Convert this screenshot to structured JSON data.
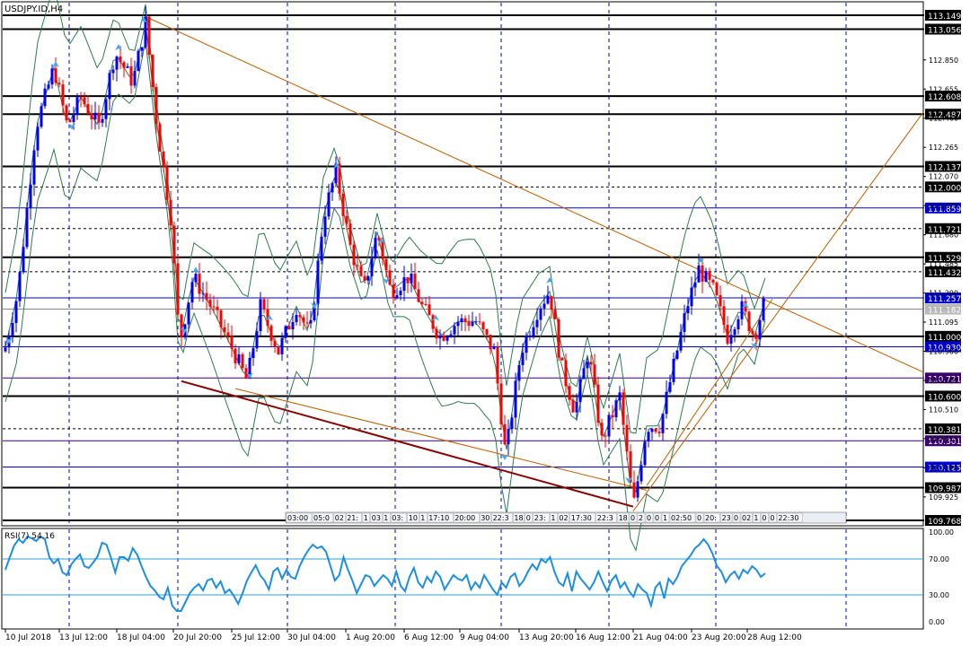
{
  "chart_data": {
    "type": "candlestick",
    "symbol_title": "USDJPY.ID,H4",
    "price_axis": {
      "ylim": [
        109.768,
        113.149
      ],
      "tick_labels": [
        "112.850",
        "112.655",
        "112.460",
        "112.265",
        "112.070",
        "111.875",
        "111.680",
        "111.485",
        "111.290",
        "111.095",
        "110.900",
        "110.705",
        "110.510",
        "110.315",
        "110.120",
        "109.925"
      ]
    },
    "level_labels": [
      {
        "value": "113.149",
        "style": "black"
      },
      {
        "value": "113.056",
        "style": "black"
      },
      {
        "value": "112.608",
        "style": "black"
      },
      {
        "value": "112.487",
        "style": "black"
      },
      {
        "value": "112.137",
        "style": "black"
      },
      {
        "value": "112.000",
        "style": "black"
      },
      {
        "value": "111.859",
        "style": "blue"
      },
      {
        "value": "111.721",
        "style": "black"
      },
      {
        "value": "111.529",
        "style": "black"
      },
      {
        "value": "111.432",
        "style": "black"
      },
      {
        "value": "111.257",
        "style": "blue"
      },
      {
        "value": "111.182",
        "style": "current"
      },
      {
        "value": "111.000",
        "style": "black"
      },
      {
        "value": "110.930",
        "style": "blue"
      },
      {
        "value": "110.721",
        "style": "purple"
      },
      {
        "value": "110.600",
        "style": "black"
      },
      {
        "value": "110.381",
        "style": "black"
      },
      {
        "value": "110.301",
        "style": "purple"
      },
      {
        "value": "110.125",
        "style": "blue"
      },
      {
        "value": "109.987",
        "style": "black"
      },
      {
        "value": "109.768",
        "style": "black"
      }
    ],
    "time_axis_labels": [
      "10 Jul 2018",
      "13 Jul 12:00",
      "18 Jul 04:00",
      "20 Jul 20:00",
      "25 Jul 12:00",
      "30 Jul 04:00",
      "1 Aug 20:00",
      "6 Aug 12:00",
      "9 Aug 04:00",
      "13 Aug 20:00",
      "16 Aug 12:00",
      "21 Aug 04:00",
      "23 Aug 20:00",
      "28 Aug 12:00"
    ],
    "session_labels": [
      "03:00",
      "05:0",
      "02",
      "21:",
      "1",
      "03",
      "1",
      "03:",
      "10",
      "1",
      "17:10",
      "20:00",
      "30",
      "22:3",
      "18",
      "0",
      "23:",
      "1",
      "02",
      "17:30",
      "22:3",
      "18",
      "0",
      "2",
      "0",
      "0",
      "1",
      "02:50",
      "0",
      "20:",
      "23",
      "0",
      "02",
      "1",
      "0",
      "0",
      "22:30"
    ],
    "rsi": {
      "label": "RSI(7) 54.16",
      "ylim": [
        0,
        100
      ],
      "tick_labels": [
        "100.00",
        "70.00",
        "30.00",
        "0.00"
      ],
      "levels": [
        70,
        30
      ],
      "values": [
        58,
        72,
        85,
        92,
        88,
        95,
        93,
        90,
        95,
        92,
        72,
        65,
        70,
        55,
        52,
        64,
        70,
        75,
        62,
        60,
        66,
        73,
        88,
        86,
        72,
        55,
        72,
        72,
        68,
        82,
        75,
        62,
        50,
        40,
        35,
        28,
        25,
        38,
        18,
        12,
        12,
        22,
        32,
        38,
        42,
        35,
        46,
        48,
        38,
        45,
        32,
        36,
        29,
        20,
        32,
        46,
        55,
        63,
        52,
        46,
        36,
        56,
        60,
        48,
        58,
        50,
        48,
        62,
        72,
        80,
        86,
        82,
        84,
        78,
        62,
        46,
        52,
        72,
        58,
        46,
        32,
        42,
        52,
        50,
        40,
        46,
        52,
        48,
        40,
        56,
        40,
        34,
        50,
        60,
        44,
        38,
        50,
        44,
        56,
        50,
        36,
        44,
        52,
        48,
        46,
        52,
        36,
        44,
        38,
        52,
        44,
        36,
        30,
        44,
        38,
        50,
        54,
        40,
        46,
        56,
        64,
        58,
        70,
        66,
        72,
        56,
        44,
        40,
        54,
        34,
        56,
        48,
        42,
        36,
        44,
        56,
        44,
        34,
        46,
        52,
        38,
        44,
        34,
        28,
        42,
        36,
        32,
        18,
        38,
        44,
        26,
        48,
        42,
        50,
        62,
        68,
        74,
        82,
        86,
        92,
        86,
        76,
        62,
        56,
        44,
        52,
        56,
        48,
        58,
        54,
        62,
        58,
        50,
        54
      ],
      "last": 54.16
    }
  }
}
